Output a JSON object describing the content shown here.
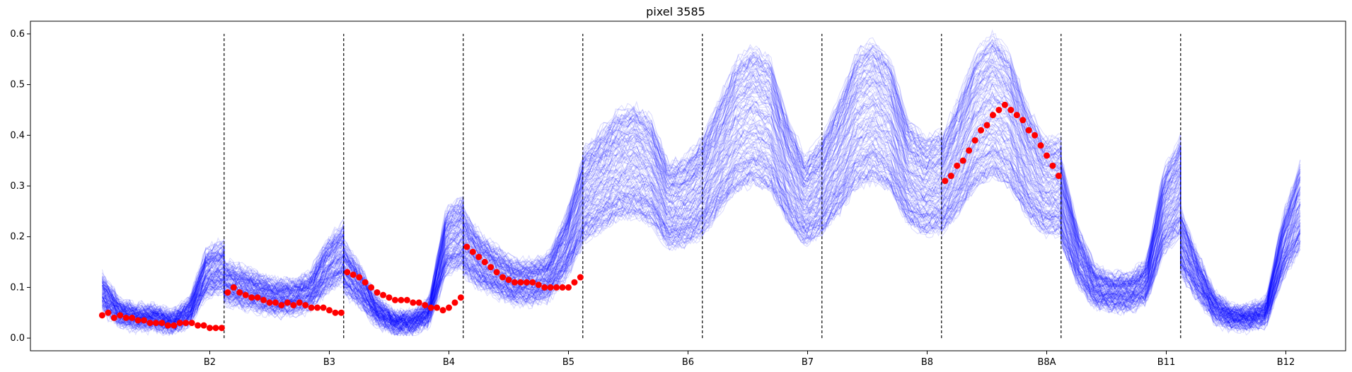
{
  "chart_data": {
    "type": "line",
    "title": "pixel 3585",
    "xlabel": "",
    "ylabel": "",
    "ylim": [
      -0.025,
      0.625
    ],
    "yticks": [
      0.0,
      0.1,
      0.2,
      0.3,
      0.4,
      0.5,
      0.6
    ],
    "ytick_labels": [
      "0.0",
      "0.1",
      "0.2",
      "0.3",
      "0.4",
      "0.5",
      "0.6"
    ],
    "xticks": [
      {
        "label": "B2",
        "x": 1.0
      },
      {
        "label": "B3",
        "x": 2.0
      },
      {
        "label": "B4",
        "x": 3.0
      },
      {
        "label": "B5",
        "x": 4.0
      },
      {
        "label": "B6",
        "x": 5.0
      },
      {
        "label": "B7",
        "x": 6.0
      },
      {
        "label": "B8",
        "x": 7.0
      },
      {
        "label": "B8A",
        "x": 8.0
      },
      {
        "label": "B11",
        "x": 9.0
      },
      {
        "label": "B12",
        "x": 10.0
      }
    ],
    "xlim": [
      -0.5,
      10.5
    ],
    "band_separators": [
      1.12,
      2.12,
      3.12,
      4.12,
      5.12,
      6.12,
      7.12,
      8.12,
      9.12
    ],
    "separator_y_range": [
      0.0,
      0.6
    ],
    "ensemble": {
      "name": "ensemble",
      "color": "#0000ff",
      "opacity": 0.15,
      "count": 140,
      "bands": [
        {
          "band": "B2",
          "profile": [
            0.09,
            0.05,
            0.04,
            0.04,
            0.03,
            0.05,
            0.13,
            0.14
          ]
        },
        {
          "band": "B3",
          "profile": [
            0.11,
            0.1,
            0.09,
            0.08,
            0.08,
            0.09,
            0.14,
            0.17
          ]
        },
        {
          "band": "B4",
          "profile": [
            0.14,
            0.1,
            0.05,
            0.03,
            0.03,
            0.05,
            0.19,
            0.21
          ]
        },
        {
          "band": "B5",
          "profile": [
            0.19,
            0.15,
            0.13,
            0.11,
            0.11,
            0.12,
            0.18,
            0.27
          ]
        },
        {
          "band": "B6",
          "profile": [
            0.28,
            0.31,
            0.34,
            0.35,
            0.33,
            0.26,
            0.27,
            0.3
          ]
        },
        {
          "band": "B7",
          "profile": [
            0.3,
            0.36,
            0.42,
            0.44,
            0.42,
            0.33,
            0.27,
            0.3
          ]
        },
        {
          "band": "B8",
          "profile": [
            0.3,
            0.36,
            0.43,
            0.45,
            0.42,
            0.33,
            0.3,
            0.31
          ]
        },
        {
          "band": "B8A",
          "profile": [
            0.3,
            0.36,
            0.43,
            0.46,
            0.43,
            0.35,
            0.3,
            0.3
          ]
        },
        {
          "band": "B11",
          "profile": [
            0.27,
            0.16,
            0.1,
            0.09,
            0.09,
            0.11,
            0.25,
            0.3
          ]
        },
        {
          "band": "B12",
          "profile": [
            0.19,
            0.12,
            0.06,
            0.04,
            0.04,
            0.05,
            0.18,
            0.26
          ]
        }
      ]
    },
    "observed": {
      "name": "observed",
      "color": "#ff0000",
      "x": [
        0.1,
        0.15,
        0.2,
        0.25,
        0.3,
        0.35,
        0.4,
        0.45,
        0.5,
        0.55,
        0.6,
        0.65,
        0.7,
        0.75,
        0.8,
        0.85,
        0.9,
        0.95,
        1.0,
        1.05,
        1.1,
        1.15,
        1.2,
        1.25,
        1.3,
        1.35,
        1.4,
        1.45,
        1.5,
        1.55,
        1.6,
        1.65,
        1.7,
        1.75,
        1.8,
        1.85,
        1.9,
        1.95,
        2.0,
        2.05,
        2.1,
        2.15,
        2.2,
        2.25,
        2.3,
        2.35,
        2.4,
        2.45,
        2.5,
        2.55,
        2.6,
        2.65,
        2.7,
        2.75,
        2.8,
        2.85,
        2.9,
        2.95,
        3.0,
        3.05,
        3.1,
        3.15,
        3.2,
        3.25,
        3.3,
        3.35,
        3.4,
        3.45,
        3.5,
        3.55,
        3.6,
        3.65,
        3.7,
        3.75,
        3.8,
        3.85,
        3.9,
        3.95,
        4.0,
        4.05,
        4.1,
        7.15,
        7.2,
        7.25,
        7.3,
        7.35,
        7.4,
        7.45,
        7.5,
        7.55,
        7.6,
        7.65,
        7.7,
        7.75,
        7.8,
        7.85,
        7.9,
        7.95,
        8.0,
        8.05,
        8.1
      ],
      "y": [
        0.045,
        0.05,
        0.04,
        0.045,
        0.04,
        0.04,
        0.035,
        0.035,
        0.03,
        0.03,
        0.03,
        0.025,
        0.025,
        0.03,
        0.03,
        0.03,
        0.025,
        0.025,
        0.02,
        0.02,
        0.02,
        0.09,
        0.1,
        0.09,
        0.085,
        0.08,
        0.08,
        0.075,
        0.07,
        0.07,
        0.065,
        0.07,
        0.065,
        0.07,
        0.065,
        0.06,
        0.06,
        0.06,
        0.055,
        0.05,
        0.05,
        0.13,
        0.125,
        0.12,
        0.11,
        0.1,
        0.09,
        0.085,
        0.08,
        0.075,
        0.075,
        0.075,
        0.07,
        0.07,
        0.065,
        0.06,
        0.06,
        0.055,
        0.06,
        0.07,
        0.08,
        0.18,
        0.17,
        0.16,
        0.15,
        0.14,
        0.13,
        0.12,
        0.115,
        0.11,
        0.11,
        0.11,
        0.11,
        0.105,
        0.1,
        0.1,
        0.1,
        0.1,
        0.1,
        0.11,
        0.12,
        0.31,
        0.32,
        0.34,
        0.35,
        0.37,
        0.39,
        0.41,
        0.42,
        0.44,
        0.45,
        0.46,
        0.45,
        0.44,
        0.43,
        0.41,
        0.4,
        0.38,
        0.36,
        0.34,
        0.32
      ]
    }
  }
}
